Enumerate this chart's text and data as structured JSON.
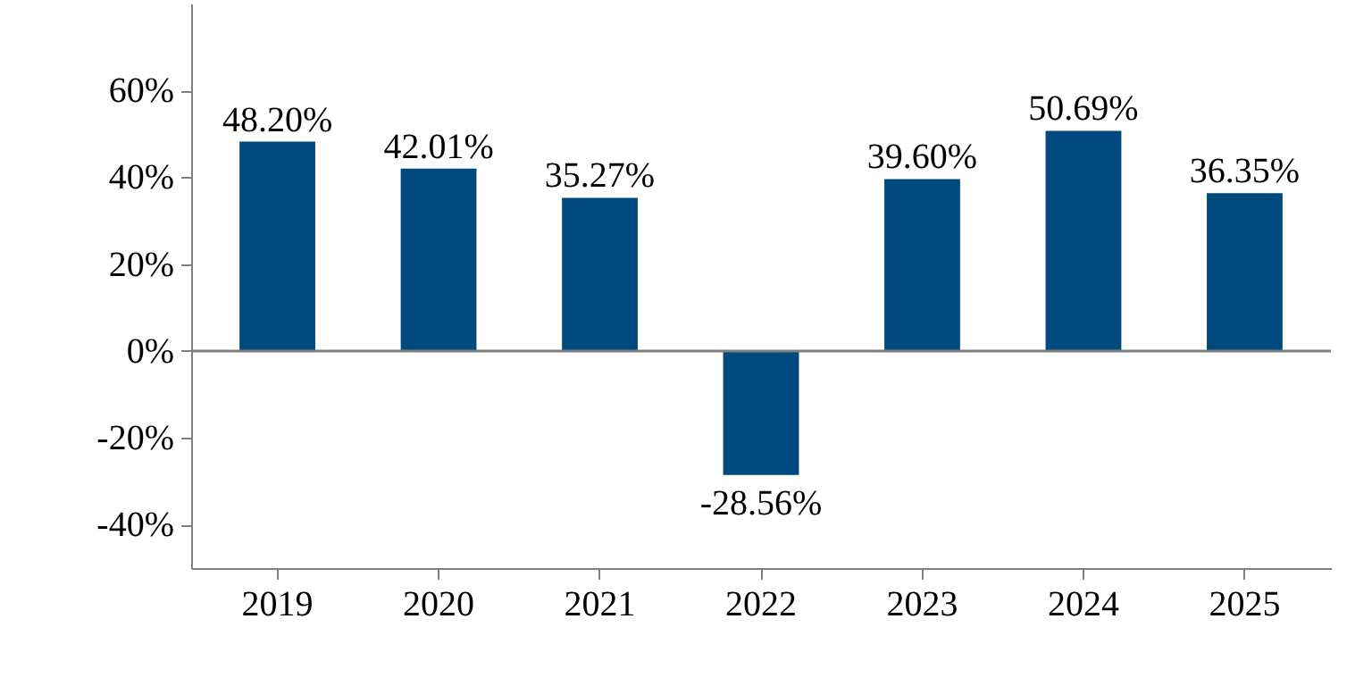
{
  "chart_data": {
    "type": "bar",
    "categories": [
      "2019",
      "2020",
      "2021",
      "2022",
      "2023",
      "2024",
      "2025"
    ],
    "values": [
      48.2,
      42.01,
      35.27,
      -28.56,
      39.6,
      50.69,
      36.35
    ],
    "value_labels": [
      "48.20%",
      "42.01%",
      "35.27%",
      "-28.56%",
      "39.60%",
      "50.69%",
      "36.35%"
    ],
    "color": "#004a7f",
    "ylim": [
      -50,
      80
    ],
    "yticks": [
      {
        "value": -40,
        "label": "-40%"
      },
      {
        "value": -20,
        "label": "-20%"
      },
      {
        "value": 0,
        "label": "0%"
      },
      {
        "value": 20,
        "label": "20%"
      },
      {
        "value": 40,
        "label": "40%"
      },
      {
        "value": 60,
        "label": "60%"
      }
    ],
    "ref_lines": [
      {
        "axis": "y",
        "value": 0,
        "color": "#808080"
      }
    ],
    "grid": false
  }
}
